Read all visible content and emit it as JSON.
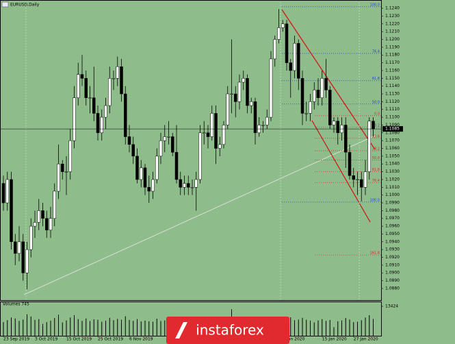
{
  "chart_data": {
    "type": "candlestick",
    "title": "EURUSD,Daily",
    "ylim": [
      1.0865,
      1.1248
    ],
    "yticks": [
      {
        "value": 1.088,
        "label": "1.0880"
      },
      {
        "value": 1.089,
        "label": "1.0890"
      },
      {
        "value": 1.09,
        "label": "1.0900"
      },
      {
        "value": 1.091,
        "label": "1.0910"
      },
      {
        "value": 1.092,
        "label": "1.0920"
      },
      {
        "value": 1.093,
        "label": "1.0930"
      },
      {
        "value": 1.094,
        "label": "1.0940"
      },
      {
        "value": 1.095,
        "label": "1.0950"
      },
      {
        "value": 1.096,
        "label": "1.0960"
      },
      {
        "value": 1.097,
        "label": "1.0970"
      },
      {
        "value": 1.098,
        "label": "1.0980"
      },
      {
        "value": 1.099,
        "label": "1.0990"
      },
      {
        "value": 1.1,
        "label": "1.1000"
      },
      {
        "value": 1.101,
        "label": "1.1010"
      },
      {
        "value": 1.102,
        "label": "1.1020"
      },
      {
        "value": 1.103,
        "label": "1.1030"
      },
      {
        "value": 1.104,
        "label": "1.1040"
      },
      {
        "value": 1.105,
        "label": "1.1050"
      },
      {
        "value": 1.106,
        "label": "1.1060"
      },
      {
        "value": 1.107,
        "label": "1.1070"
      },
      {
        "value": 1.108,
        "label": "1.1080"
      },
      {
        "value": 1.109,
        "label": "1.1090"
      },
      {
        "value": 1.11,
        "label": "1.1100"
      },
      {
        "value": 1.111,
        "label": "1.1110"
      },
      {
        "value": 1.112,
        "label": "1.1120"
      },
      {
        "value": 1.113,
        "label": "1.1130"
      },
      {
        "value": 1.114,
        "label": "1.1140"
      },
      {
        "value": 1.115,
        "label": "1.1150"
      },
      {
        "value": 1.116,
        "label": "1.1160"
      },
      {
        "value": 1.117,
        "label": "1.1170"
      },
      {
        "value": 1.118,
        "label": "1.1180"
      },
      {
        "value": 1.119,
        "label": "1.1190"
      },
      {
        "value": 1.12,
        "label": "1.1200"
      },
      {
        "value": 1.121,
        "label": "1.1210"
      },
      {
        "value": 1.122,
        "label": "1.1220"
      },
      {
        "value": 1.123,
        "label": "1.1230"
      },
      {
        "value": 1.124,
        "label": "1.1240"
      }
    ],
    "categories": [
      "23 Sep 2019",
      null,
      null,
      null,
      null,
      null,
      null,
      null,
      "3 Oct 2019",
      null,
      null,
      null,
      null,
      null,
      null,
      null,
      "15 Oct 2019",
      null,
      null,
      null,
      null,
      null,
      null,
      null,
      "25 Oct 2019",
      null,
      null,
      null,
      null,
      null,
      null,
      null,
      "6 Nov 2019",
      null,
      null,
      null,
      null,
      null,
      null,
      null,
      null,
      null,
      null,
      null,
      null,
      null,
      null,
      null,
      null,
      null,
      null,
      null,
      null,
      null,
      null,
      null,
      null,
      null,
      null,
      null,
      null,
      null,
      null,
      null,
      null,
      null,
      null,
      null,
      null,
      null,
      null,
      "1 Jan 2020",
      null,
      null,
      null,
      null,
      null,
      null,
      null,
      null,
      null,
      "15 Jan 2020",
      null,
      null,
      null,
      null,
      null,
      null,
      null,
      "27 Jan 2020",
      null,
      null,
      null,
      null,
      null
    ],
    "open": [
      1.1015,
      1.099,
      1.102,
      1.094,
      1.0925,
      1.094,
      1.09,
      1.093,
      1.096,
      1.0965,
      1.098,
      1.097,
      1.0955,
      1.097,
      1.1005,
      1.104,
      1.103,
      1.103,
      1.107,
      1.1125,
      1.1155,
      1.115,
      1.1125,
      1.1125,
      1.1105,
      1.108,
      1.11,
      1.1115,
      1.115,
      1.115,
      1.1165,
      1.113,
      1.1075,
      1.1065,
      1.105,
      1.102,
      1.1035,
      1.101,
      1.1005,
      1.102,
      1.105,
      1.107,
      1.1075,
      1.1075,
      1.1055,
      1.102,
      1.101,
      1.1015,
      1.101,
      1.101,
      1.102,
      1.108,
      1.108,
      1.1075,
      1.1105,
      1.106,
      1.1065,
      1.109,
      1.113,
      1.113,
      1.112,
      1.1145,
      1.115,
      1.1115,
      1.112,
      1.108,
      1.109,
      1.109,
      1.11,
      1.1175,
      1.12,
      1.1215,
      1.122,
      1.117,
      1.116,
      1.1195,
      1.115,
      1.1105,
      1.1105,
      1.112,
      1.1135,
      1.1125,
      1.115,
      1.1135,
      1.109,
      1.1095,
      1.108,
      1.109,
      1.1055,
      1.1025,
      1.102,
      1.102,
      1.101,
      1.103,
      1.1095
    ],
    "high": [
      1.1025,
      1.103,
      1.103,
      1.095,
      1.096,
      1.095,
      1.094,
      1.097,
      1.098,
      1.0995,
      1.099,
      1.098,
      1.0985,
      1.1015,
      1.1065,
      1.1045,
      1.105,
      1.1085,
      1.114,
      1.117,
      1.118,
      1.116,
      1.114,
      1.1165,
      1.1115,
      1.111,
      1.1125,
      1.1165,
      1.116,
      1.1178,
      1.1175,
      1.114,
      1.109,
      1.1075,
      1.106,
      1.1045,
      1.104,
      1.1025,
      1.103,
      1.106,
      1.108,
      1.109,
      1.1095,
      1.108,
      1.109,
      1.103,
      1.1025,
      1.1025,
      1.102,
      1.103,
      1.109,
      1.1095,
      1.109,
      1.1115,
      1.1115,
      1.1075,
      1.1095,
      1.114,
      1.12,
      1.114,
      1.1155,
      1.116,
      1.1155,
      1.1125,
      1.1125,
      1.11,
      1.1095,
      1.111,
      1.1185,
      1.1205,
      1.1239,
      1.1225,
      1.1225,
      1.1175,
      1.1205,
      1.12,
      1.116,
      1.112,
      1.113,
      1.1145,
      1.115,
      1.116,
      1.1175,
      1.114,
      1.11,
      1.11,
      1.11,
      1.11,
      1.1065,
      1.1035,
      1.103,
      1.103,
      1.1045,
      1.11,
      1.11
    ],
    "low": [
      1.098,
      1.098,
      1.093,
      1.091,
      1.0915,
      1.089,
      1.0879,
      1.092,
      1.0945,
      1.0955,
      1.096,
      1.0945,
      1.0945,
      1.096,
      1.0995,
      1.102,
      1.1,
      1.102,
      1.106,
      1.1115,
      1.114,
      1.1115,
      1.1105,
      1.1095,
      1.107,
      1.107,
      1.1085,
      1.1105,
      1.1135,
      1.114,
      1.112,
      1.1065,
      1.1055,
      1.104,
      1.1015,
      1.101,
      1.1,
      1.099,
      1.0995,
      1.1015,
      1.104,
      1.1055,
      1.1065,
      1.105,
      1.1015,
      1.1,
      1.1,
      1.1,
      1.1,
      1.098,
      1.1015,
      1.1065,
      1.106,
      1.107,
      1.104,
      1.105,
      1.106,
      1.1085,
      1.1105,
      1.11,
      1.111,
      1.1135,
      1.1105,
      1.1105,
      1.1065,
      1.1075,
      1.108,
      1.1085,
      1.1095,
      1.1165,
      1.1195,
      1.121,
      1.116,
      1.1125,
      1.115,
      1.1135,
      1.109,
      1.1095,
      1.1095,
      1.111,
      1.1115,
      1.1115,
      1.1125,
      1.1085,
      1.108,
      1.1065,
      1.107,
      1.1035,
      1.102,
      1.101,
      1.1,
      1.0992,
      1.1,
      1.102,
      1.1075
    ],
    "close": [
      1.099,
      1.102,
      1.094,
      1.0925,
      1.094,
      1.09,
      1.093,
      1.096,
      1.0965,
      1.098,
      1.097,
      1.0955,
      1.097,
      1.1005,
      1.104,
      1.103,
      1.103,
      1.107,
      1.1125,
      1.1155,
      1.115,
      1.1125,
      1.1125,
      1.1105,
      1.108,
      1.11,
      1.1115,
      1.115,
      1.115,
      1.1165,
      1.113,
      1.1075,
      1.1065,
      1.105,
      1.102,
      1.1035,
      1.101,
      1.1005,
      1.102,
      1.105,
      1.107,
      1.1075,
      1.1075,
      1.1055,
      1.102,
      1.101,
      1.1015,
      1.101,
      1.101,
      1.102,
      1.108,
      1.108,
      1.1075,
      1.1105,
      1.106,
      1.1065,
      1.109,
      1.113,
      1.113,
      1.112,
      1.1145,
      1.115,
      1.1115,
      1.112,
      1.108,
      1.109,
      1.109,
      1.11,
      1.1175,
      1.12,
      1.1215,
      1.122,
      1.117,
      1.116,
      1.1195,
      1.115,
      1.1105,
      1.1105,
      1.112,
      1.1135,
      1.1125,
      1.115,
      1.1135,
      1.109,
      1.1095,
      1.108,
      1.109,
      1.1055,
      1.1025,
      1.102,
      1.102,
      1.101,
      1.103,
      1.1095,
      1.1085
    ],
    "up_color": "#ffffff",
    "down_color": "#000000",
    "current_price_label": "1.1085",
    "fib_levels": [
      {
        "label": "100.0",
        "value": 1.1242,
        "color": "#1e46c8"
      },
      {
        "label": "76.4",
        "value": 1.1182,
        "color": "#1e46c8"
      },
      {
        "label": "61.8",
        "value": 1.1147,
        "color": "#1e46c8"
      },
      {
        "label": "50.0",
        "value": 1.1117,
        "color": "#1e46c8"
      },
      {
        "label": "0.0",
        "value": 1.1102,
        "color": "#c83232"
      },
      {
        "label": "38.2",
        "value": 1.1087,
        "color": "#5a5a5a"
      },
      {
        "label": "23.6",
        "value": 1.1073,
        "color": "#c83232"
      },
      {
        "label": "38.2",
        "value": 1.1057,
        "color": "#c83232"
      },
      {
        "label": "50.0",
        "value": 1.1045,
        "color": "#c83232"
      },
      {
        "label": "61.8",
        "value": 1.103,
        "color": "#c83232"
      },
      {
        "label": "76.4",
        "value": 1.1016,
        "color": "#c83232"
      },
      {
        "label": "100.0",
        "value": 1.0991,
        "color": "#1e46c8"
      },
      {
        "label": "161.8",
        "value": 1.0923,
        "color": "#c83232"
      }
    ],
    "volume_title": "Volumes 745",
    "volume_ylim": [
      0,
      13424
    ],
    "volume_yticks": [
      13424
    ],
    "volumes": [
      6200,
      7100,
      8300,
      7900,
      6800,
      7400,
      9800,
      8800,
      7200,
      7600,
      5400,
      6200,
      6900,
      8100,
      9600,
      6100,
      7000,
      8300,
      9400,
      7600,
      6800,
      7900,
      6700,
      7500,
      7300,
      6400,
      6900,
      8200,
      7100,
      7700,
      7300,
      8900,
      7200,
      6800,
      7600,
      6500,
      6900,
      6600,
      6400,
      7800,
      6700,
      7000,
      6900,
      7400,
      8100,
      6300,
      6600,
      5200,
      3100,
      5600,
      8700,
      7800,
      6900,
      8200,
      7400,
      6300,
      7100,
      8600,
      12100,
      8300,
      7600,
      7200,
      7900,
      6800,
      8700,
      4200,
      2600,
      3900,
      7600,
      6200,
      5800,
      1200,
      7900,
      8400,
      7100,
      7400,
      8200,
      7300,
      6900,
      6100,
      7000,
      7600,
      6800,
      7200,
      3900,
      6600,
      7000,
      8100,
      7400,
      6200,
      6400,
      7100,
      8300,
      9400,
      7700
    ],
    "volume_color": "#000000",
    "logo": "instaforex"
  }
}
